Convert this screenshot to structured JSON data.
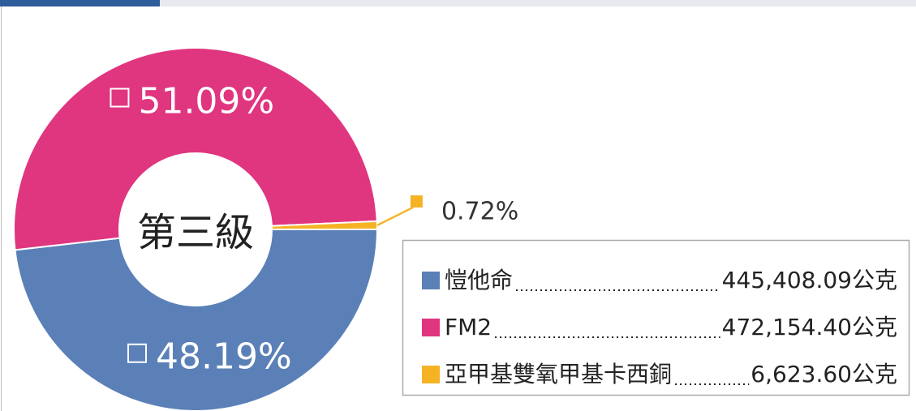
{
  "chart_data": {
    "type": "donut",
    "center_label": "第三級",
    "categories": [
      "愷他命",
      "FM2",
      "亞甲基雙氧甲基卡西銅"
    ],
    "values": [
      48.19,
      51.09,
      0.72
    ],
    "value_labels": [
      "48.19%",
      "51.09%",
      "0.72%"
    ],
    "colors": [
      "#5b80b8",
      "#e0357f",
      "#f5b324"
    ],
    "amounts": [
      445408.09,
      472154.4,
      6623.6
    ],
    "amount_labels": [
      "445,408.09公克",
      "472,154.40公克",
      "6,623.60公克"
    ]
  }
}
